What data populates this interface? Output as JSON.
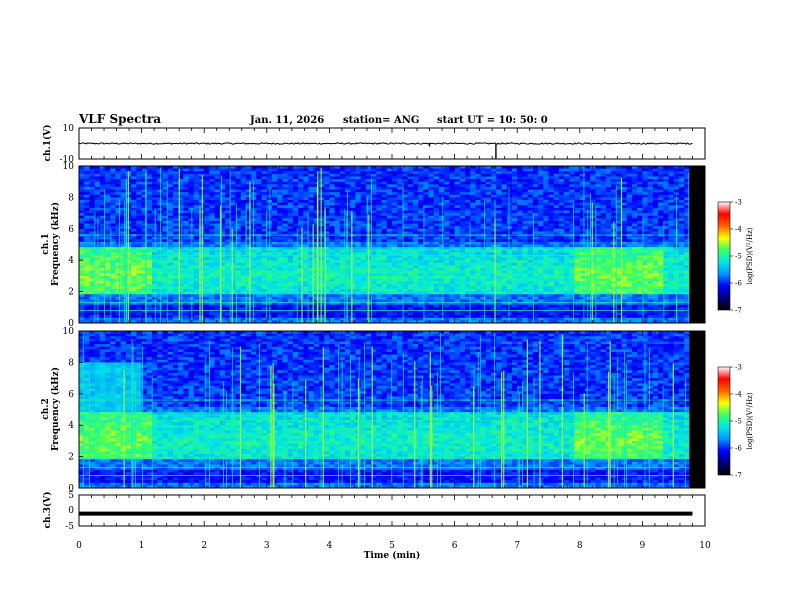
{
  "header": {
    "title": "VLF Spectra",
    "date": "Jan. 11, 2026",
    "station": "station= ANG",
    "start": "start  UT =   10: 50: 0"
  },
  "chart_data": [
    {
      "type": "line",
      "name": "ch1-waveform",
      "ylabel": "ch.1(V)",
      "ylim": [
        -10,
        10
      ],
      "yticks": [
        "10",
        "-10"
      ],
      "xlim": [
        0,
        10
      ],
      "baseline": 0,
      "spikes": [
        {
          "x": 5.6,
          "y": -2
        },
        {
          "x": 6.66,
          "y": -10
        }
      ],
      "color": "#000000"
    },
    {
      "type": "heatmap",
      "name": "ch1-spectrogram",
      "ylabel_top": "ch.1",
      "ylabel": "Frequency  (kHz)",
      "ylim": [
        0,
        10
      ],
      "yticks": [
        "0",
        "2",
        "4",
        "6",
        "8",
        "10"
      ],
      "xlim": [
        0,
        10
      ],
      "colorbar": {
        "label": "log(PSD)(V²/Hz)",
        "range": [
          -7,
          -3
        ],
        "ticks": [
          "-3",
          "-4",
          "-5",
          "-6",
          "-7"
        ]
      }
    },
    {
      "type": "heatmap",
      "name": "ch2-spectrogram",
      "ylabel_top": "ch.2",
      "ylabel": "Frequency  (kHz)",
      "ylim": [
        0,
        10
      ],
      "yticks": [
        "0",
        "2",
        "4",
        "6",
        "8",
        "10"
      ],
      "xlim": [
        0,
        10
      ],
      "colorbar": {
        "label": "log(PSD)(V²/Hz)",
        "range": [
          -7,
          -3
        ],
        "ticks": [
          "-3",
          "-4",
          "-5",
          "-6",
          "-7"
        ]
      }
    },
    {
      "type": "line",
      "name": "ch3-waveform",
      "ylabel": "ch.3(V)",
      "ylim": [
        -5,
        5
      ],
      "yticks": [
        "5",
        "0",
        "-5"
      ],
      "xlim": [
        0,
        10
      ],
      "baseline": -1,
      "color": "#000000"
    }
  ],
  "xaxis": {
    "label": "Time  (min)",
    "ticks": [
      "0",
      "1",
      "2",
      "3",
      "4",
      "5",
      "6",
      "7",
      "8",
      "9",
      "10"
    ]
  },
  "colors": {
    "background": "#ffffff",
    "ink": "#000000",
    "colormap": [
      "#000000",
      "#00007a",
      "#0000ff",
      "#0096ff",
      "#00e6e6",
      "#3cff64",
      "#ffff00",
      "#ff6400",
      "#ff0000",
      "#ffffff"
    ]
  }
}
